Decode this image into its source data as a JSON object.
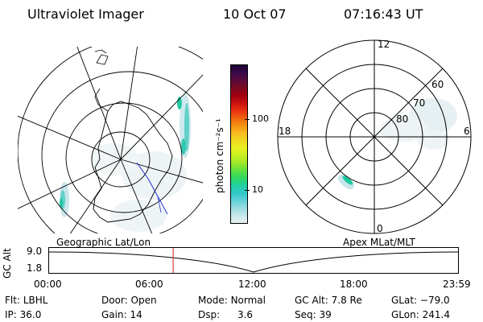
{
  "header": {
    "title": "Ultraviolet Imager",
    "date": "10 Oct 07",
    "time": "07:16:43 UT"
  },
  "colorbar": {
    "unit_label": "photon cm⁻²s⁻¹",
    "ticks": [
      "100",
      "10"
    ],
    "colors_top_to_bottom": [
      "#1a0033",
      "#3a0a4a",
      "#5a0a3a",
      "#7a0a20",
      "#a00010",
      "#c81010",
      "#e83010",
      "#f06010",
      "#f59010",
      "#f8b820",
      "#f0d820",
      "#e8f020",
      "#c8f020",
      "#a0e828",
      "#60e040",
      "#30d860",
      "#20d0a0",
      "#30c8c8",
      "#60d0d8",
      "#98dce0",
      "#c8e8ec",
      "#e8f0f2"
    ]
  },
  "left_panel": {
    "label": "Geographic Lat/Lon"
  },
  "right_panel": {
    "label": "Apex MLat/MLT",
    "mlt_labels": {
      "top": "12",
      "left": "18",
      "right": "6",
      "bottom": "0"
    },
    "lat_labels": [
      "60",
      "70",
      "80"
    ]
  },
  "timeline": {
    "y_label": "GC Alt",
    "y_max": "9.0",
    "y_min": "1.8",
    "x_ticks": [
      "00:00",
      "06:00",
      "12:00",
      "18:00",
      "23:59"
    ],
    "current_time_hours": 7.28
  },
  "info": {
    "rows": [
      [
        {
          "label": "Flt:",
          "value": "LBHL"
        },
        {
          "label": "Door:",
          "value": "Open"
        },
        {
          "label": "Mode:",
          "value": "Normal"
        },
        {
          "label": "GC Alt:",
          "value": "7.8 Re"
        },
        {
          "label": "GLat:",
          "value": "−79.0"
        }
      ],
      [
        {
          "label": "IP:",
          "value": "36.0"
        },
        {
          "label": "Gain:",
          "value": "14"
        },
        {
          "label": "Dsp:",
          "value": "3.6"
        },
        {
          "label": "Seq:",
          "value": "39"
        },
        {
          "label": "GLon:",
          "value": "241.4"
        }
      ]
    ]
  }
}
